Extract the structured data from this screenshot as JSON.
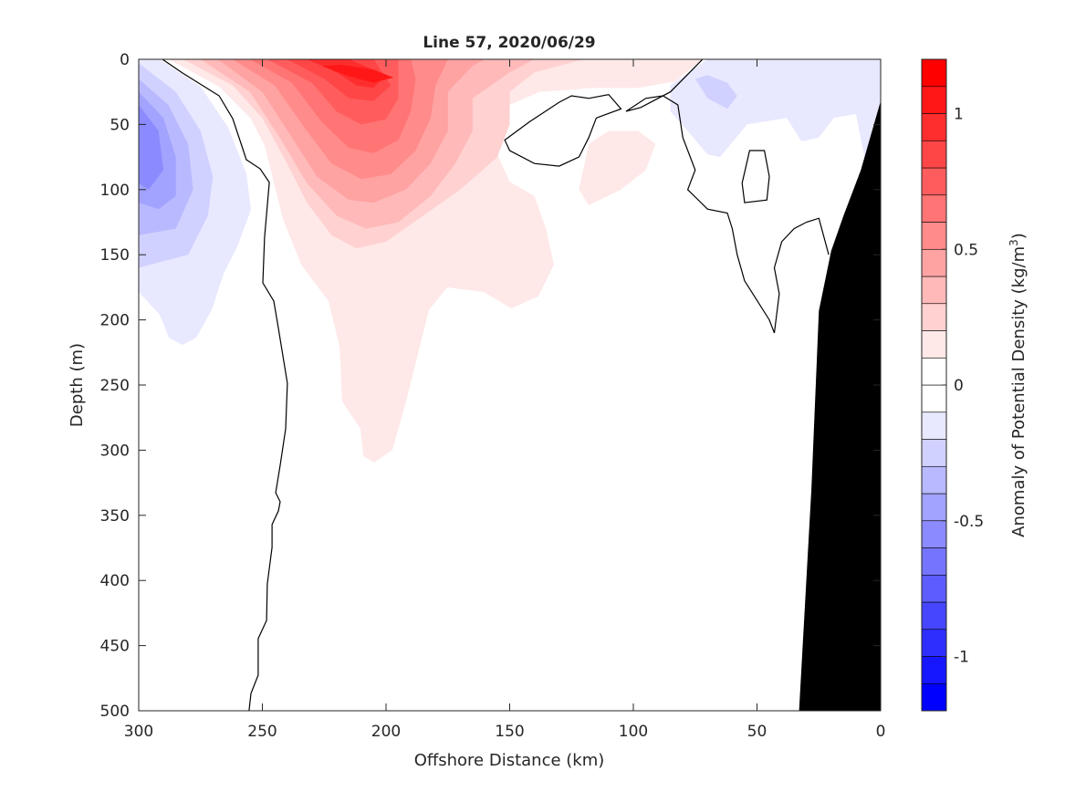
{
  "chart_data": {
    "type": "contour",
    "title": "Line 57, 2020/06/29",
    "xlabel": "Offshore Distance (km)",
    "ylabel": "Depth (m)",
    "xlim": [
      300,
      0
    ],
    "ylim": [
      0,
      500
    ],
    "xticks": [
      300,
      250,
      200,
      150,
      100,
      50,
      0
    ],
    "yticks": [
      0,
      50,
      100,
      150,
      200,
      250,
      300,
      350,
      400,
      450,
      500
    ],
    "colorbar": {
      "label": "Anomaly of Potential Density (kg/m",
      "label_sup": "3",
      "label_close": ")",
      "range": [
        -1.2,
        1.2
      ],
      "step": 0.1,
      "ticks": [
        1,
        0.5,
        0,
        -0.5,
        -1
      ],
      "tick_labels": [
        "1",
        "0.5",
        "0",
        "-0.5",
        "-1"
      ],
      "max_color": "#ff0000",
      "min_color": "#0000ff"
    },
    "filled_regions": [
      {
        "level": -0.1,
        "pts": [
          [
            291.5,
            0
          ],
          [
            274.9,
            21
          ],
          [
            263.8,
            52.5
          ],
          [
            256.5,
            87.5
          ],
          [
            254.6,
            115.5
          ],
          [
            260.1,
            143.6
          ],
          [
            265.7,
            164.6
          ],
          [
            270.5,
            192.6
          ],
          [
            276.8,
            213.6
          ],
          [
            282.3,
            219.2
          ],
          [
            287.8,
            213.6
          ],
          [
            291.5,
            196
          ],
          [
            300,
            178.6
          ],
          [
            300,
            0
          ]
        ]
      },
      {
        "level": -0.1,
        "pts": [
          [
            70,
            0
          ],
          [
            85,
            20
          ],
          [
            85,
            40
          ],
          [
            78,
            55
          ],
          [
            70,
            73
          ],
          [
            65,
            75
          ],
          [
            54,
            50
          ],
          [
            38,
            45
          ],
          [
            32,
            63
          ],
          [
            25,
            60
          ],
          [
            19,
            45
          ],
          [
            10,
            42
          ],
          [
            6,
            80
          ],
          [
            0,
            95
          ],
          [
            0,
            0
          ]
        ]
      },
      {
        "level": -0.2,
        "pts": [
          [
            300,
            3
          ],
          [
            285,
            25
          ],
          [
            275,
            55
          ],
          [
            270,
            90
          ],
          [
            272,
            120
          ],
          [
            280,
            150
          ],
          [
            290,
            155
          ],
          [
            300,
            160
          ]
        ]
      },
      {
        "level": -0.2,
        "pts": [
          [
            75,
            15
          ],
          [
            70,
            30
          ],
          [
            62,
            38
          ],
          [
            58,
            28
          ],
          [
            62,
            18
          ],
          [
            70,
            12
          ]
        ]
      },
      {
        "level": -0.3,
        "pts": [
          [
            300,
            15
          ],
          [
            288,
            35
          ],
          [
            280,
            65
          ],
          [
            278,
            100
          ],
          [
            285,
            130
          ],
          [
            300,
            135
          ]
        ]
      },
      {
        "level": -0.4,
        "pts": [
          [
            300,
            25
          ],
          [
            290,
            45
          ],
          [
            285,
            75
          ],
          [
            285,
            105
          ],
          [
            292,
            115
          ],
          [
            300,
            110
          ]
        ]
      },
      {
        "level": -0.5,
        "pts": [
          [
            300,
            35
          ],
          [
            292,
            55
          ],
          [
            290,
            85
          ],
          [
            296,
            100
          ],
          [
            300,
            95
          ]
        ]
      },
      {
        "level": 0.1,
        "pts": [
          [
            287.8,
            0
          ],
          [
            267.5,
            21
          ],
          [
            254.6,
            45.5
          ],
          [
            249,
            66.5
          ],
          [
            241.7,
            122.5
          ],
          [
            234.3,
            157.6
          ],
          [
            223.2,
            185.6
          ],
          [
            218.8,
            220.6
          ],
          [
            217.7,
            262.6
          ],
          [
            210.3,
            283.6
          ],
          [
            209.2,
            304.6
          ],
          [
            204.8,
            309.5
          ],
          [
            197.4,
            299.7
          ],
          [
            191.9,
            262.6
          ],
          [
            188.2,
            234.6
          ],
          [
            182.7,
            192.6
          ],
          [
            175.3,
            175
          ],
          [
            160.5,
            178.6
          ],
          [
            149.4,
            191.2
          ],
          [
            138.4,
            182
          ],
          [
            132.1,
            157.6
          ],
          [
            135.4,
            129.6
          ],
          [
            140,
            105
          ],
          [
            150,
            94
          ],
          [
            155,
            73
          ],
          [
            157,
            52
          ],
          [
            150,
            35
          ],
          [
            138,
            25
          ],
          [
            116,
            22
          ],
          [
            98,
            22
          ],
          [
            83,
            17
          ],
          [
            72,
            0
          ]
        ]
      },
      {
        "level": 0.1,
        "pts": [
          [
            118,
            65
          ],
          [
            110,
            55
          ],
          [
            98,
            55
          ],
          [
            91,
            65
          ],
          [
            95,
            85
          ],
          [
            105,
            100
          ],
          [
            118,
            112
          ],
          [
            122,
            100
          ]
        ]
      },
      {
        "level": 0.2,
        "pts": [
          [
            282,
            0
          ],
          [
            262,
            20
          ],
          [
            250,
            45
          ],
          [
            240,
            80
          ],
          [
            232,
            110
          ],
          [
            222,
            135
          ],
          [
            212,
            145
          ],
          [
            200,
            140
          ],
          [
            185,
            120
          ],
          [
            170,
            100
          ],
          [
            155,
            75
          ],
          [
            150,
            50
          ],
          [
            150,
            25
          ],
          [
            140,
            10
          ],
          [
            120,
            0
          ]
        ]
      },
      {
        "level": 0.3,
        "pts": [
          [
            275,
            0
          ],
          [
            255,
            25
          ],
          [
            243,
            60
          ],
          [
            232,
            95
          ],
          [
            220,
            120
          ],
          [
            208,
            130
          ],
          [
            195,
            125
          ],
          [
            182,
            105
          ],
          [
            172,
            80
          ],
          [
            165,
            55
          ],
          [
            165,
            30
          ],
          [
            150,
            10
          ],
          [
            140,
            0
          ]
        ]
      },
      {
        "level": 0.4,
        "pts": [
          [
            268,
            0
          ],
          [
            250,
            25
          ],
          [
            238,
            60
          ],
          [
            228,
            90
          ],
          [
            215,
            108
          ],
          [
            205,
            110
          ],
          [
            192,
            100
          ],
          [
            182,
            80
          ],
          [
            175,
            55
          ],
          [
            175,
            25
          ],
          [
            165,
            5
          ],
          [
            160,
            0
          ]
        ]
      },
      {
        "level": 0.5,
        "pts": [
          [
            262,
            0
          ],
          [
            245,
            20
          ],
          [
            232,
            55
          ],
          [
            222,
            80
          ],
          [
            210,
            92
          ],
          [
            198,
            88
          ],
          [
            188,
            70
          ],
          [
            182,
            45
          ],
          [
            180,
            20
          ],
          [
            175,
            0
          ]
        ]
      },
      {
        "level": 0.6,
        "pts": [
          [
            255,
            0
          ],
          [
            238,
            18
          ],
          [
            226,
            48
          ],
          [
            215,
            68
          ],
          [
            205,
            72
          ],
          [
            195,
            62
          ],
          [
            190,
            40
          ],
          [
            188,
            15
          ],
          [
            190,
            0
          ]
        ]
      },
      {
        "level": 0.7,
        "pts": [
          [
            248,
            0
          ],
          [
            230,
            18
          ],
          [
            220,
            40
          ],
          [
            210,
            50
          ],
          [
            200,
            46
          ],
          [
            195,
            30
          ],
          [
            195,
            0
          ]
        ]
      },
      {
        "level": 0.8,
        "pts": [
          [
            240,
            0
          ],
          [
            225,
            15
          ],
          [
            215,
            30
          ],
          [
            205,
            32
          ],
          [
            198,
            20
          ],
          [
            205,
            0
          ]
        ]
      },
      {
        "level": 0.9,
        "pts": [
          [
            232,
            0
          ],
          [
            220,
            10
          ],
          [
            212,
            20
          ],
          [
            205,
            22
          ],
          [
            200,
            12
          ],
          [
            215,
            0
          ]
        ]
      },
      {
        "level": 1.0,
        "pts": [
          [
            226,
            5
          ],
          [
            215,
            13
          ],
          [
            205,
            18
          ],
          [
            197,
            14
          ],
          [
            205,
            8
          ],
          [
            218,
            4
          ]
        ]
      }
    ],
    "zero_contours": [
      {
        "closed": false,
        "pts": [
          [
            290.4,
            0
          ],
          [
            282.3,
            10.5
          ],
          [
            267.5,
            28
          ],
          [
            262,
            45.5
          ],
          [
            258.3,
            66.5
          ],
          [
            256.5,
            77
          ],
          [
            250.9,
            84
          ],
          [
            247.2,
            94.5
          ],
          [
            249.1,
            136.6
          ],
          [
            249.8,
            171.6
          ],
          [
            245.4,
            185.6
          ],
          [
            243.5,
            206.6
          ],
          [
            239.9,
            248.6
          ],
          [
            240.6,
            283.6
          ],
          [
            242.8,
            311.6
          ],
          [
            244.6,
            332.6
          ],
          [
            242.8,
            339.6
          ],
          [
            243.5,
            346.6
          ],
          [
            246.1,
            357.1
          ],
          [
            246.1,
            374.6
          ],
          [
            248,
            402.7
          ],
          [
            248.3,
            430.7
          ],
          [
            251.7,
            444.7
          ],
          [
            251.7,
            472.7
          ],
          [
            254.6,
            486.7
          ],
          [
            255.4,
            500
          ]
        ]
      },
      {
        "closed": true,
        "pts": [
          [
            152,
            62
          ],
          [
            142,
            48
          ],
          [
            130,
            33
          ],
          [
            125,
            28
          ],
          [
            118,
            30
          ],
          [
            110,
            27
          ],
          [
            105,
            38
          ],
          [
            115,
            45
          ],
          [
            118,
            60
          ],
          [
            122,
            75
          ],
          [
            130,
            82
          ],
          [
            140,
            80
          ],
          [
            150,
            70
          ]
        ]
      },
      {
        "closed": false,
        "pts": [
          [
            72,
            0
          ],
          [
            85,
            25
          ],
          [
            97,
            37
          ],
          [
            103,
            40
          ],
          [
            95,
            30
          ],
          [
            88,
            28
          ],
          [
            82,
            35
          ],
          [
            80,
            60
          ],
          [
            75,
            85
          ],
          [
            78,
            100
          ],
          [
            70,
            115
          ],
          [
            62,
            118
          ],
          [
            60,
            130
          ],
          [
            58,
            150
          ],
          [
            55,
            170
          ],
          [
            50,
            185
          ],
          [
            45,
            200
          ],
          [
            43,
            210
          ],
          [
            41,
            180
          ],
          [
            43,
            160
          ],
          [
            40,
            140
          ],
          [
            35,
            130
          ],
          [
            30,
            125
          ],
          [
            25,
            122
          ],
          [
            21,
            150
          ]
        ]
      },
      {
        "closed": true,
        "pts": [
          [
            53,
            70
          ],
          [
            47,
            70
          ],
          [
            45,
            90
          ],
          [
            46,
            108
          ],
          [
            55,
            110
          ],
          [
            56,
            95
          ]
        ]
      }
    ],
    "bathymetry": {
      "color": "#000000",
      "pts": [
        [
          0,
          32
        ],
        [
          8,
          85
        ],
        [
          15,
          120
        ],
        [
          20,
          147
        ],
        [
          25,
          193
        ],
        [
          28,
          330
        ],
        [
          33,
          500
        ],
        [
          0,
          500
        ]
      ]
    }
  }
}
